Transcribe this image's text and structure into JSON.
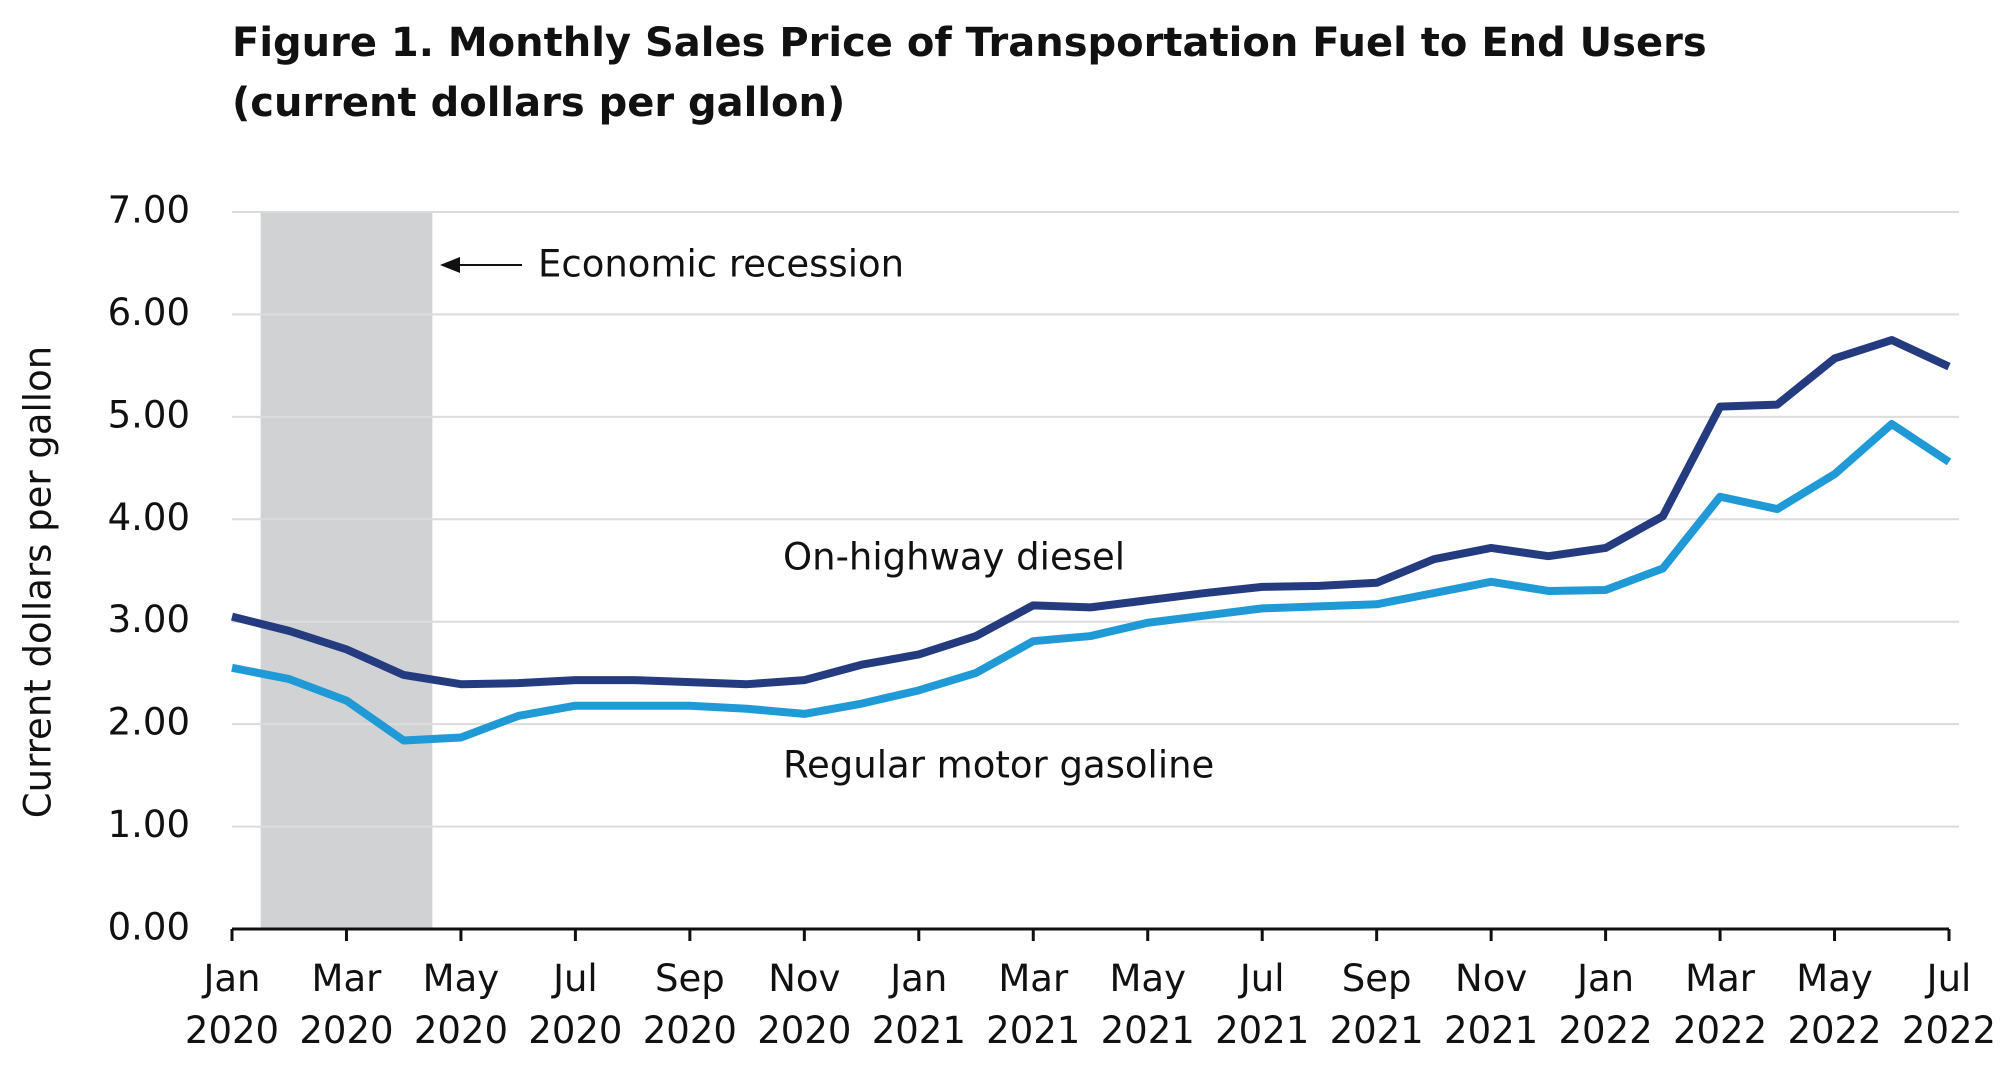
{
  "chart_data": {
    "type": "line",
    "title": "Figure 1. Monthly Sales Price of Transportation Fuel to End Users",
    "subtitle": "(current dollars per gallon)",
    "y_label": "Current dollars per gallon",
    "annotation": "Economic recession",
    "categories": [
      "Jan 2020",
      null,
      "Mar 2020",
      null,
      "May 2020",
      null,
      "Jul 2020",
      null,
      "Sep 2020",
      null,
      "Nov 2020",
      null,
      "Jan 2021",
      null,
      "Mar 2021",
      null,
      "May 2021",
      null,
      "Jul 2021",
      null,
      "Sep 2021",
      null,
      "Nov 2021",
      null,
      "Jan 2022",
      null,
      "Mar 2022",
      null,
      "May 2022",
      null,
      "Jul 2022"
    ],
    "series": [
      {
        "name": "On-highway diesel",
        "color": "#253b80",
        "values": [
          3.05,
          2.91,
          2.73,
          2.48,
          2.39,
          2.4,
          2.43,
          2.43,
          2.41,
          2.39,
          2.43,
          2.58,
          2.68,
          2.86,
          3.16,
          3.14,
          3.21,
          3.28,
          3.34,
          3.35,
          3.38,
          3.61,
          3.72,
          3.64,
          3.72,
          4.03,
          5.1,
          5.12,
          5.57,
          5.75,
          5.49
        ]
      },
      {
        "name": "Regular motor gasoline",
        "color": "#1f9ad6",
        "values": [
          2.55,
          2.44,
          2.23,
          1.84,
          1.87,
          2.08,
          2.18,
          2.18,
          2.18,
          2.15,
          2.1,
          2.2,
          2.33,
          2.5,
          2.81,
          2.86,
          2.99,
          3.06,
          3.13,
          3.15,
          3.17,
          3.28,
          3.39,
          3.3,
          3.31,
          3.52,
          4.22,
          4.1,
          4.44,
          4.93,
          4.56
        ]
      }
    ],
    "ylim": [
      0,
      7
    ],
    "yticks": [
      {
        "value": 0,
        "label": "0.00"
      },
      {
        "value": 1,
        "label": "1.00"
      },
      {
        "value": 2,
        "label": "2.00"
      },
      {
        "value": 3,
        "label": "3.00"
      },
      {
        "value": 4,
        "label": "4.00"
      },
      {
        "value": 5,
        "label": "5.00"
      },
      {
        "value": 6,
        "label": "6.00"
      },
      {
        "value": 7,
        "label": "7.00"
      }
    ],
    "grid": true
  }
}
